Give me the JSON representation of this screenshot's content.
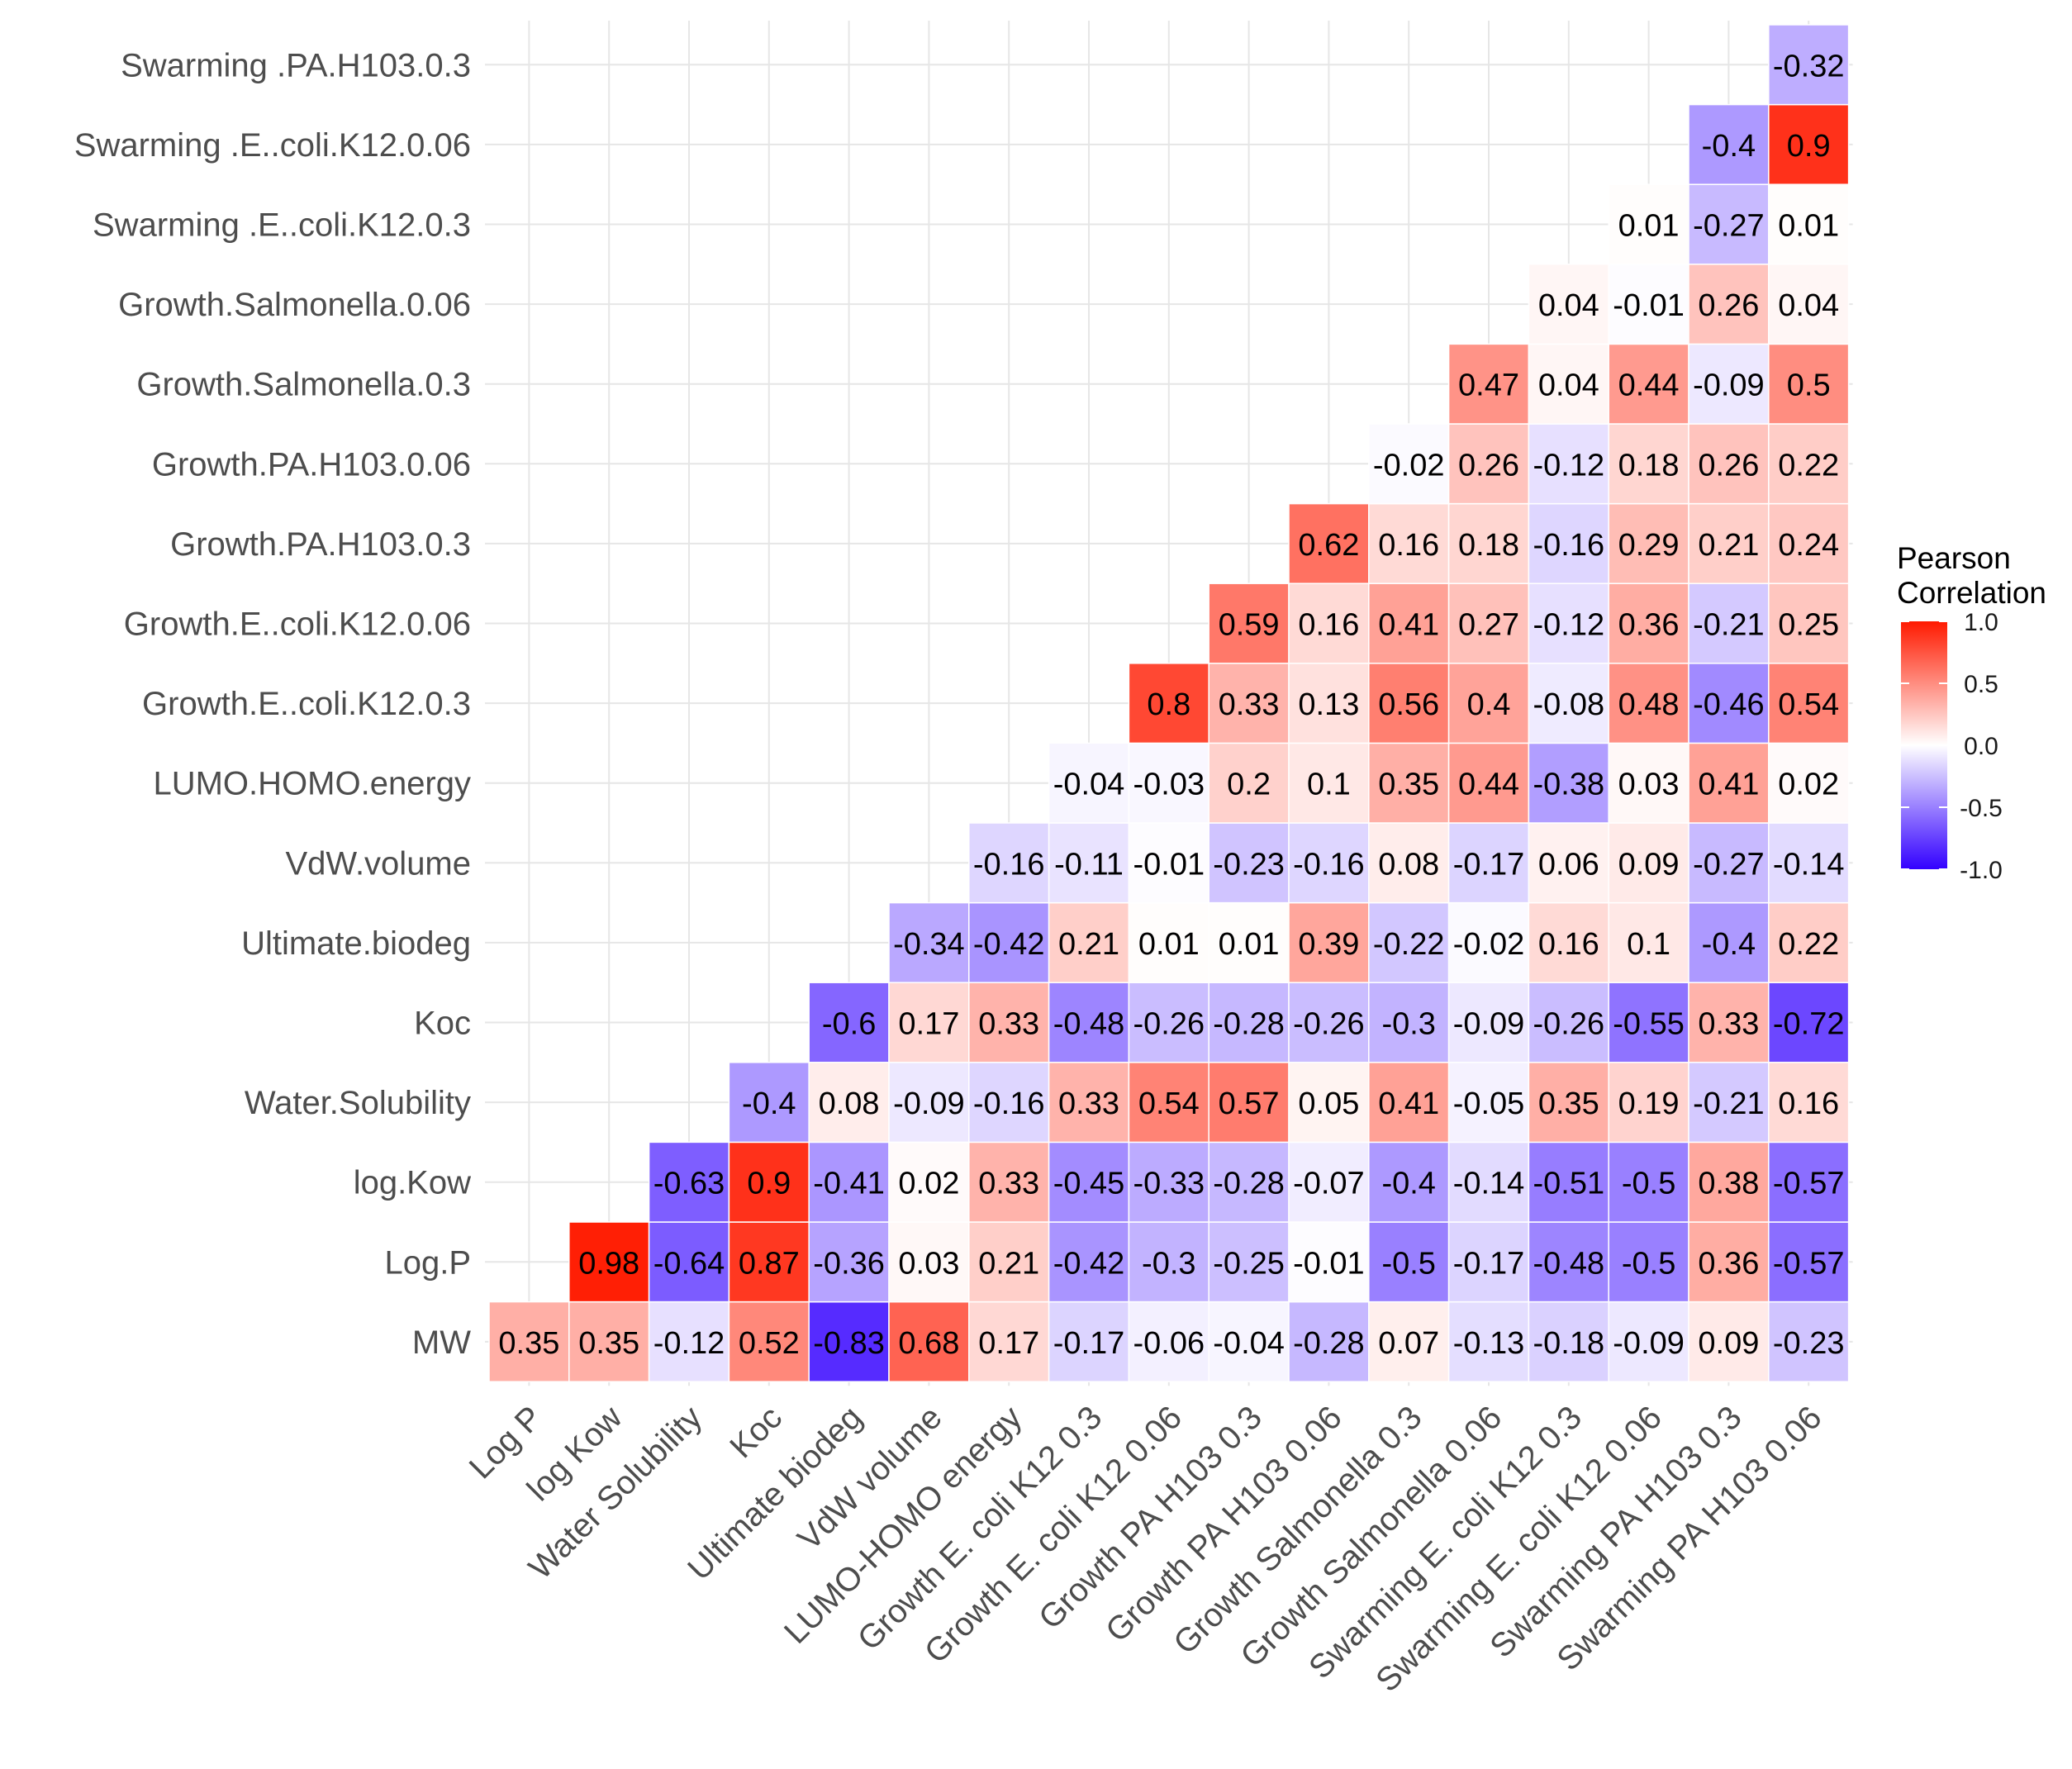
{
  "chart_data": {
    "type": "heatmap",
    "title": "",
    "legend": {
      "title": [
        "Pearson",
        "Correlation"
      ],
      "tick_labels": [
        "1.0",
        "0.5",
        "0.0",
        "-0.5",
        "-1.0"
      ],
      "tick_values": [
        1.0,
        0.5,
        0.0,
        -0.5,
        -1.0
      ],
      "range": [
        -1,
        1
      ],
      "placement": "right",
      "colors": {
        "low": "#3300ff",
        "mid": "#ffffff",
        "high": "#ff1a00"
      }
    },
    "y_labels": [
      "MW",
      "Log.P",
      "log.Kow",
      "Water.Solubility",
      "Koc",
      "Ultimate.biodeg",
      "VdW.volume",
      "LUMO.HOMO.energy",
      "Growth.E..coli.K12.0.3",
      "Growth.E..coli.K12.0.06",
      "Growth.PA.H103.0.3",
      "Growth.PA.H103.0.06",
      "Growth.Salmonella.0.3",
      "Growth.Salmonella.0.06",
      "Swarming .E..coli.K12.0.3",
      "Swarming .E..coli.K12.0.06",
      "Swarming .PA.H103.0.3"
    ],
    "x_labels": [
      "Log P",
      "log Kow",
      "Water Solubility",
      "Koc",
      "Ultimate biodeg",
      "VdW volume",
      "LUMO-HOMO energy",
      "Growth E. coli K12 0.3",
      "Growth E. coli K12 0.06",
      "Growth PA H103 0.3",
      "Growth PA H103 0.06",
      "Growth Salmonella 0.3",
      "Growth Salmonella 0.06",
      "Swarming E. coli K12 0.3",
      "Swarming E. coli K12 0.06",
      "Swarming PA H103 0.3",
      "Swarming PA H103 0.06"
    ],
    "values": [
      [
        0.35,
        0.35,
        -0.12,
        0.52,
        -0.83,
        0.68,
        0.17,
        -0.17,
        -0.06,
        -0.04,
        -0.28,
        0.07,
        -0.13,
        -0.18,
        -0.09,
        0.09,
        -0.23
      ],
      [
        null,
        0.98,
        -0.64,
        0.87,
        -0.36,
        0.03,
        0.21,
        -0.42,
        -0.3,
        -0.25,
        -0.01,
        -0.5,
        -0.17,
        -0.48,
        -0.5,
        0.36,
        -0.57
      ],
      [
        null,
        null,
        -0.63,
        0.9,
        -0.41,
        0.02,
        0.33,
        -0.45,
        -0.33,
        -0.28,
        -0.07,
        -0.4,
        -0.14,
        -0.51,
        -0.5,
        0.38,
        -0.57
      ],
      [
        null,
        null,
        null,
        -0.4,
        0.08,
        -0.09,
        -0.16,
        0.33,
        0.54,
        0.57,
        0.05,
        0.41,
        -0.05,
        0.35,
        0.19,
        -0.21,
        0.16
      ],
      [
        null,
        null,
        null,
        null,
        -0.6,
        0.17,
        0.33,
        -0.48,
        -0.26,
        -0.28,
        -0.26,
        -0.3,
        -0.09,
        -0.26,
        -0.55,
        0.33,
        -0.72
      ],
      [
        null,
        null,
        null,
        null,
        null,
        -0.34,
        -0.42,
        0.21,
        0.01,
        0.01,
        0.39,
        -0.22,
        -0.02,
        0.16,
        0.1,
        -0.4,
        0.22
      ],
      [
        null,
        null,
        null,
        null,
        null,
        null,
        -0.16,
        -0.11,
        -0.01,
        -0.23,
        -0.16,
        0.08,
        -0.17,
        0.06,
        0.09,
        -0.27,
        -0.14
      ],
      [
        null,
        null,
        null,
        null,
        null,
        null,
        null,
        -0.04,
        -0.03,
        0.2,
        0.1,
        0.35,
        0.44,
        -0.38,
        0.03,
        0.41,
        0.02
      ],
      [
        null,
        null,
        null,
        null,
        null,
        null,
        null,
        null,
        0.8,
        0.33,
        0.13,
        0.56,
        0.4,
        -0.08,
        0.48,
        -0.46,
        0.54
      ],
      [
        null,
        null,
        null,
        null,
        null,
        null,
        null,
        null,
        null,
        0.59,
        0.16,
        0.41,
        0.27,
        -0.12,
        0.36,
        -0.21,
        0.25
      ],
      [
        null,
        null,
        null,
        null,
        null,
        null,
        null,
        null,
        null,
        null,
        0.62,
        0.16,
        0.18,
        -0.16,
        0.29,
        0.21,
        0.24
      ],
      [
        null,
        null,
        null,
        null,
        null,
        null,
        null,
        null,
        null,
        null,
        null,
        -0.02,
        0.26,
        -0.12,
        0.18,
        0.26,
        0.22
      ],
      [
        null,
        null,
        null,
        null,
        null,
        null,
        null,
        null,
        null,
        null,
        null,
        null,
        0.47,
        0.04,
        0.44,
        -0.09,
        0.5
      ],
      [
        null,
        null,
        null,
        null,
        null,
        null,
        null,
        null,
        null,
        null,
        null,
        null,
        null,
        0.04,
        -0.01,
        0.26,
        0.04
      ],
      [
        null,
        null,
        null,
        null,
        null,
        null,
        null,
        null,
        null,
        null,
        null,
        null,
        null,
        null,
        0.01,
        -0.27,
        0.01
      ],
      [
        null,
        null,
        null,
        null,
        null,
        null,
        null,
        null,
        null,
        null,
        null,
        null,
        null,
        null,
        null,
        -0.4,
        0.9
      ],
      [
        null,
        null,
        null,
        null,
        null,
        null,
        null,
        null,
        null,
        null,
        null,
        null,
        null,
        null,
        null,
        null,
        -0.32
      ]
    ],
    "grid": true
  }
}
